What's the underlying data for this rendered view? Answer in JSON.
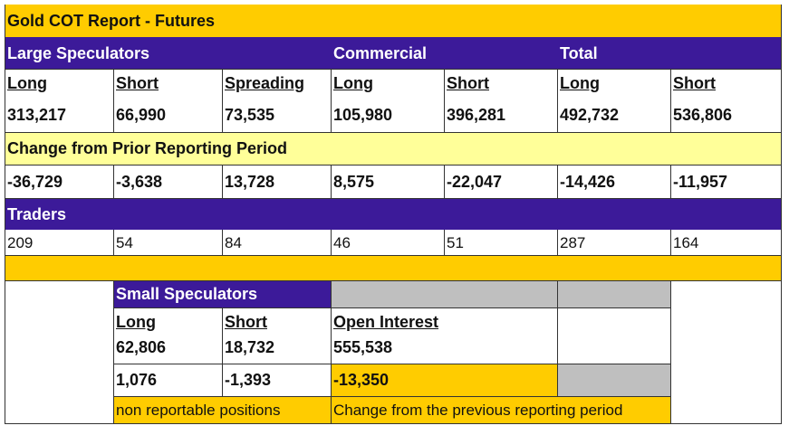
{
  "title": "Gold COT Report - Futures",
  "groups": {
    "large_speculators": "Large Speculators",
    "commercial": "Commercial",
    "total": "Total"
  },
  "columns": [
    "Long",
    "Short",
    "Spreading",
    "Long",
    "Short",
    "Long",
    "Short"
  ],
  "positions": [
    "313,217",
    "66,990",
    "73,535",
    "105,980",
    "396,281",
    "492,732",
    "536,806"
  ],
  "change_header": "Change from Prior Reporting Period",
  "changes": [
    "-36,729",
    "-3,638",
    "13,728",
    "8,575",
    "-22,047",
    "-14,426",
    "-11,957"
  ],
  "traders_header": "Traders",
  "traders": [
    "209",
    "54",
    "84",
    "46",
    "51",
    "287",
    "164"
  ],
  "small_speculators": {
    "header": "Small Speculators",
    "long_label": "Long",
    "short_label": "Short",
    "long_value": "62,806",
    "short_value": "18,732",
    "long_change": "1,076",
    "short_change": "-1,393",
    "note": "non reportable positions"
  },
  "open_interest": {
    "label": "Open Interest",
    "value": "555,538",
    "change": "-13,350",
    "note": "Change from the previous reporting period"
  },
  "colors": {
    "gold": "#ffcc00",
    "light_gold": "#ffff99",
    "purple": "#3c1a99",
    "grey": "#bfbfbf"
  }
}
